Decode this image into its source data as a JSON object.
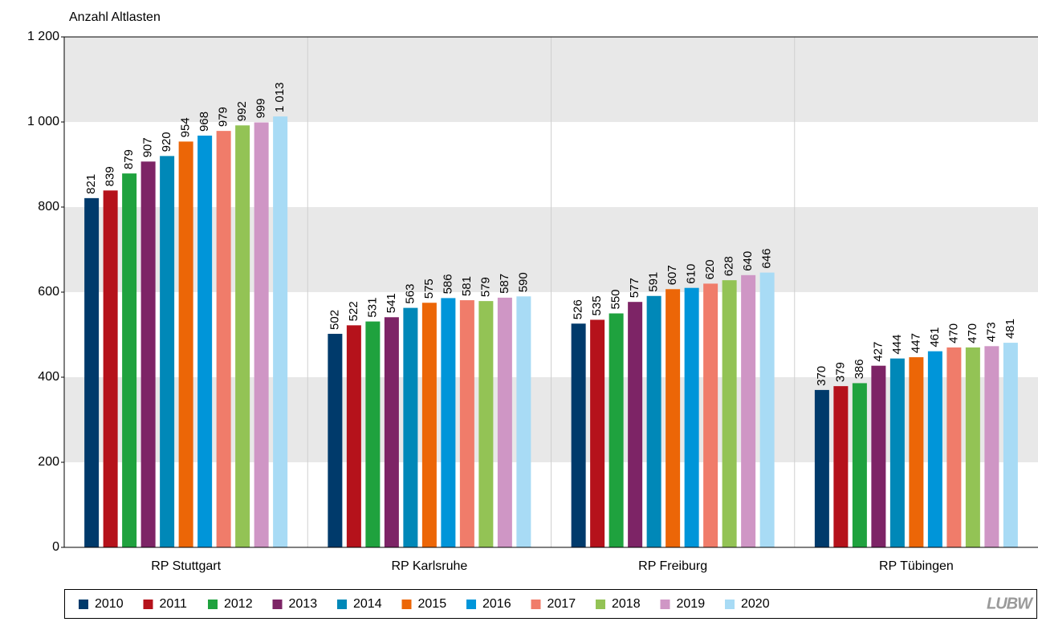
{
  "chart_data": {
    "type": "bar",
    "y_label": "Anzahl Altlasten",
    "categories": [
      "RP Stuttgart",
      "RP Karlsruhe",
      "RP Freiburg",
      "RP Tübingen"
    ],
    "series": [
      {
        "name": "2010",
        "color": "#003a6b",
        "values": [
          821,
          502,
          526,
          370
        ]
      },
      {
        "name": "2011",
        "color": "#b5121b",
        "values": [
          839,
          522,
          535,
          379
        ]
      },
      {
        "name": "2012",
        "color": "#1fa23e",
        "values": [
          879,
          531,
          550,
          386
        ]
      },
      {
        "name": "2013",
        "color": "#7d2466",
        "values": [
          907,
          541,
          577,
          427
        ]
      },
      {
        "name": "2014",
        "color": "#0088b8",
        "values": [
          920,
          563,
          591,
          444
        ]
      },
      {
        "name": "2015",
        "color": "#ec6607",
        "values": [
          954,
          575,
          607,
          447
        ]
      },
      {
        "name": "2016",
        "color": "#0095d9",
        "values": [
          968,
          586,
          610,
          461
        ]
      },
      {
        "name": "2017",
        "color": "#f07c6a",
        "values": [
          979,
          581,
          620,
          470
        ]
      },
      {
        "name": "2018",
        "color": "#93c355",
        "values": [
          992,
          579,
          628,
          470
        ]
      },
      {
        "name": "2019",
        "color": "#cf96c5",
        "values": [
          999,
          587,
          640,
          473
        ]
      },
      {
        "name": "2020",
        "color": "#a8dbf5",
        "values": [
          1013,
          590,
          646,
          481
        ],
        "value_labels": [
          "1 013",
          "590",
          "646",
          "481"
        ]
      }
    ],
    "ylim": [
      0,
      1200
    ],
    "yticks": [
      0,
      200,
      400,
      600,
      800,
      {
        "value": 1000,
        "label": "1 000"
      },
      {
        "value": 1200,
        "label": "1 200"
      }
    ],
    "grid": "bands",
    "band_color": "#e8e8e8",
    "legend": "bottom",
    "logo": "LUBW"
  }
}
